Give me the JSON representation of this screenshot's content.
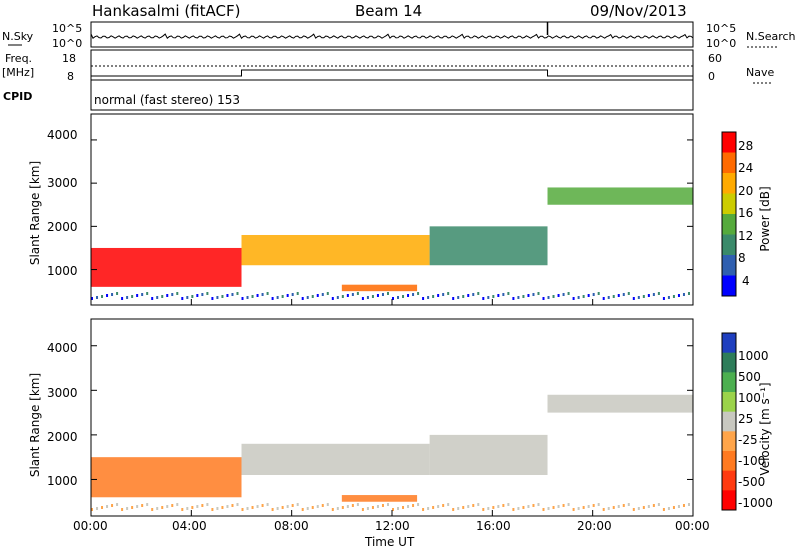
{
  "header": {
    "station": "Hankasalmi (fitACF)",
    "beam": "Beam 14",
    "date": "09/Nov/2013"
  },
  "side_labels": {
    "nsky": "N.Sky",
    "freq": "Freq.",
    "mhz": "[MHz]",
    "cpid": "CPID",
    "nsearch": "N.Search",
    "nave": "Nave"
  },
  "strip_ticks": {
    "nsky_left": [
      "10^5",
      "10^0"
    ],
    "nsky_right": [
      "10^5",
      "10^0"
    ],
    "freq_left": [
      "18",
      "8"
    ],
    "nave_right": [
      "60",
      "0"
    ]
  },
  "cpid_text": "normal (fast stereo) 153",
  "x_axis": {
    "label": "Time UT",
    "ticks": [
      "00:00",
      "04:00",
      "08:00",
      "12:00",
      "16:00",
      "20:00",
      "00:00"
    ]
  },
  "panels": {
    "power": {
      "ylabel": "Slant Range [km]",
      "yticks": [
        "4000",
        "3000",
        "2000",
        "1000"
      ],
      "cbar_label": "Power [dB]",
      "cbar_ticks": [
        "28",
        "24",
        "20",
        "16",
        "12",
        "8",
        "4"
      ]
    },
    "velocity": {
      "ylabel": "Slant Range [km]",
      "yticks": [
        "4000",
        "3000",
        "2000",
        "1000"
      ],
      "cbar_label": "Velocity [m s⁻¹]",
      "cbar_ticks": [
        "1000",
        "500",
        "100",
        "25",
        "-25",
        "-100",
        "-500",
        "-1000"
      ]
    }
  },
  "colors": {
    "power_scale": [
      "#0000ff",
      "#2f5fb0",
      "#3a8a6a",
      "#55aa3c",
      "#cccc00",
      "#ffaa00",
      "#ff6a00",
      "#ff0000"
    ],
    "velocity_scale": [
      "#1f3fbf",
      "#2e7d5a",
      "#4caf50",
      "#9bd34a",
      "#c8c8c0",
      "#ffa54a",
      "#ff7a20",
      "#ff3a10",
      "#ff0000"
    ]
  },
  "chart_data": [
    {
      "type": "heatmap",
      "title": "Power",
      "xlabel": "Time UT",
      "ylabel": "Slant Range [km]",
      "xlim": [
        "00:00",
        "24:00"
      ],
      "ylim": [
        180,
        4600
      ],
      "colorbar": {
        "label": "Power [dB]",
        "range": [
          0,
          30
        ],
        "ticks": [
          4,
          8,
          12,
          16,
          20,
          24,
          28
        ]
      },
      "regions": [
        {
          "t_start": 0.0,
          "t_end": 6.0,
          "range_low": 600,
          "range_high": 1500,
          "value_db": 28
        },
        {
          "t_start": 6.0,
          "t_end": 13.5,
          "range_low": 1100,
          "range_high": 1800,
          "value_db": 20
        },
        {
          "t_start": 13.5,
          "t_end": 18.2,
          "range_low": 1100,
          "range_high": 2000,
          "value_db": 10
        },
        {
          "t_start": 18.2,
          "t_end": 24.0,
          "range_low": 2500,
          "range_high": 2900,
          "value_db": 12
        },
        {
          "t_start": 10.0,
          "t_end": 13.0,
          "range_low": 500,
          "range_high": 650,
          "value_db": 24
        }
      ]
    },
    {
      "type": "heatmap",
      "title": "Velocity",
      "xlabel": "Time UT",
      "ylabel": "Slant Range [km]",
      "xlim": [
        "00:00",
        "24:00"
      ],
      "ylim": [
        180,
        4600
      ],
      "colorbar": {
        "label": "Velocity [m s⁻¹]",
        "ticks": [
          1000,
          500,
          100,
          25,
          -25,
          -100,
          -500,
          -1000
        ]
      },
      "regions": [
        {
          "t_start": 0.0,
          "t_end": 6.0,
          "range_low": 600,
          "range_high": 1500,
          "value_ms": -300
        },
        {
          "t_start": 6.0,
          "t_end": 13.5,
          "range_low": 1100,
          "range_high": 1800,
          "value_ms": 0
        },
        {
          "t_start": 13.5,
          "t_end": 18.2,
          "range_low": 1100,
          "range_high": 2000,
          "value_ms": 0
        },
        {
          "t_start": 18.2,
          "t_end": 24.0,
          "range_low": 2500,
          "range_high": 2900,
          "value_ms": 0
        },
        {
          "t_start": 10.0,
          "t_end": 13.0,
          "range_low": 500,
          "range_high": 650,
          "value_ms": -300
        }
      ]
    }
  ]
}
